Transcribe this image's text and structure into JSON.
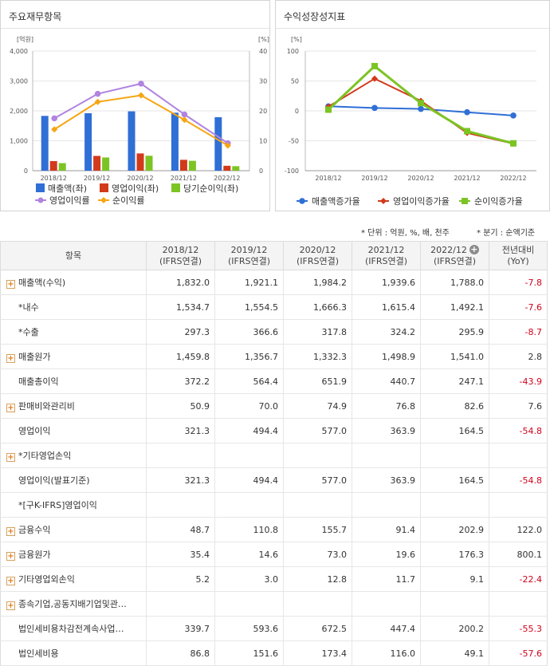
{
  "left_panel": {
    "title": "주요재무항목",
    "chart_data": {
      "type": "bar",
      "categories": [
        "2018/12",
        "2019/12",
        "2020/12",
        "2021/12",
        "2022/12"
      ],
      "left_unit": "[억원]",
      "right_unit": "[%]",
      "left_ticks": [
        "4,000",
        "3,000",
        "2,000",
        "1,000",
        "0"
      ],
      "right_ticks": [
        "40",
        "30",
        "20",
        "10",
        "0"
      ],
      "ylim_left": [
        0,
        4000
      ],
      "ylim_right": [
        0,
        40
      ],
      "bars": [
        {
          "name": "매출액(좌)",
          "color": "#2f6fd6",
          "values": [
            1832.0,
            1921.1,
            1984.2,
            1939.6,
            1788.0
          ]
        },
        {
          "name": "영업이익(좌)",
          "color": "#d23a1c",
          "values": [
            321.3,
            494.4,
            577.0,
            363.9,
            164.5
          ]
        },
        {
          "name": "당기순이익(좌)",
          "color": "#7cc424",
          "values": [
            253.0,
            442.0,
            499.0,
            330.0,
            150.9
          ]
        }
      ],
      "lines": [
        {
          "name": "영업이익률",
          "color": "#b184e0",
          "values": [
            17.5,
            25.7,
            29.1,
            18.8,
            9.2
          ]
        },
        {
          "name": "순이익률",
          "color": "#f7a512",
          "values": [
            13.8,
            23.0,
            25.2,
            17.0,
            8.4
          ]
        }
      ]
    }
  },
  "right_panel": {
    "title": "수익성장성지표",
    "chart_data": {
      "type": "line",
      "categories": [
        "2018/12",
        "2019/12",
        "2020/12",
        "2021/12",
        "2022/12"
      ],
      "unit": "[%]",
      "ticks": [
        "100",
        "50",
        "0",
        "-50",
        "-100"
      ],
      "ylim": [
        -100,
        100
      ],
      "series": [
        {
          "name": "매출액증가율",
          "color": "#2f6fd6",
          "marker": "circle",
          "values": [
            7.6,
            4.9,
            3.3,
            -2.3,
            -7.8
          ]
        },
        {
          "name": "영업이익증가율",
          "color": "#d23a1c",
          "marker": "diamond",
          "values": [
            7.0,
            53.9,
            16.7,
            -36.9,
            -54.8
          ]
        },
        {
          "name": "순이익증가율",
          "color": "#7cc424",
          "marker": "square",
          "values": [
            2.0,
            74.8,
            12.9,
            -33.9,
            -54.3
          ]
        }
      ]
    }
  },
  "notes": {
    "unit": "* 단위 : 억원, %, 배, 천주",
    "period": "* 분기 : 순액기준"
  },
  "table": {
    "headers": {
      "item": "항목",
      "periods": [
        {
          "year": "2018/12",
          "basis": "(IFRS연결)"
        },
        {
          "year": "2019/12",
          "basis": "(IFRS연결)"
        },
        {
          "year": "2020/12",
          "basis": "(IFRS연결)"
        },
        {
          "year": "2021/12",
          "basis": "(IFRS연결)"
        },
        {
          "year": "2022/12",
          "basis": "(IFRS연결)"
        }
      ],
      "yoy_line1": "전년대비",
      "yoy_line2": "(YoY)"
    },
    "rows": [
      {
        "label": "매출액(수익)",
        "expand": true,
        "indent": false,
        "values": [
          "1,832.0",
          "1,921.1",
          "1,984.2",
          "1,939.6",
          "1,788.0"
        ],
        "yoy": "-7.8",
        "yoy_neg": true
      },
      {
        "label": "*내수",
        "expand": false,
        "indent": true,
        "values": [
          "1,534.7",
          "1,554.5",
          "1,666.3",
          "1,615.4",
          "1,492.1"
        ],
        "yoy": "-7.6",
        "yoy_neg": true
      },
      {
        "label": "*수출",
        "expand": false,
        "indent": true,
        "values": [
          "297.3",
          "366.6",
          "317.8",
          "324.2",
          "295.9"
        ],
        "yoy": "-8.7",
        "yoy_neg": true
      },
      {
        "label": "매출원가",
        "expand": true,
        "indent": false,
        "values": [
          "1,459.8",
          "1,356.7",
          "1,332.3",
          "1,498.9",
          "1,541.0"
        ],
        "yoy": "2.8",
        "yoy_neg": false
      },
      {
        "label": "매출총이익",
        "expand": false,
        "indent": true,
        "values": [
          "372.2",
          "564.4",
          "651.9",
          "440.7",
          "247.1"
        ],
        "yoy": "-43.9",
        "yoy_neg": true
      },
      {
        "label": "판매비와관리비",
        "expand": true,
        "indent": false,
        "values": [
          "50.9",
          "70.0",
          "74.9",
          "76.8",
          "82.6"
        ],
        "yoy": "7.6",
        "yoy_neg": false
      },
      {
        "label": "영업이익",
        "expand": false,
        "indent": true,
        "values": [
          "321.3",
          "494.4",
          "577.0",
          "363.9",
          "164.5"
        ],
        "yoy": "-54.8",
        "yoy_neg": true
      },
      {
        "label": "*기타영업손익",
        "expand": true,
        "indent": false,
        "values": [
          "",
          "",
          "",
          "",
          ""
        ],
        "yoy": "",
        "yoy_neg": false
      },
      {
        "label": "영업이익(발표기준)",
        "expand": false,
        "indent": true,
        "values": [
          "321.3",
          "494.4",
          "577.0",
          "363.9",
          "164.5"
        ],
        "yoy": "-54.8",
        "yoy_neg": true
      },
      {
        "label": "*[구K-IFRS]영업이익",
        "expand": false,
        "indent": true,
        "values": [
          "",
          "",
          "",
          "",
          ""
        ],
        "yoy": "",
        "yoy_neg": false
      },
      {
        "label": "금융수익",
        "expand": true,
        "indent": false,
        "values": [
          "48.7",
          "110.8",
          "155.7",
          "91.4",
          "202.9"
        ],
        "yoy": "122.0",
        "yoy_neg": false
      },
      {
        "label": "금융원가",
        "expand": true,
        "indent": false,
        "values": [
          "35.4",
          "14.6",
          "73.0",
          "19.6",
          "176.3"
        ],
        "yoy": "800.1",
        "yoy_neg": false
      },
      {
        "label": "기타영업외손익",
        "expand": true,
        "indent": false,
        "values": [
          "5.2",
          "3.0",
          "12.8",
          "11.7",
          "9.1"
        ],
        "yoy": "-22.4",
        "yoy_neg": true
      },
      {
        "label": "종속기업,공동지배기업및관…",
        "expand": true,
        "indent": false,
        "values": [
          "",
          "",
          "",
          "",
          ""
        ],
        "yoy": "",
        "yoy_neg": false
      },
      {
        "label": "법인세비용차감전계속사업…",
        "expand": false,
        "indent": true,
        "values": [
          "339.7",
          "593.6",
          "672.5",
          "447.4",
          "200.2"
        ],
        "yoy": "-55.3",
        "yoy_neg": true
      },
      {
        "label": "법인세비용",
        "expand": false,
        "indent": true,
        "values": [
          "86.8",
          "151.6",
          "173.4",
          "116.0",
          "49.1"
        ],
        "yoy": "-57.6",
        "yoy_neg": true
      }
    ]
  }
}
